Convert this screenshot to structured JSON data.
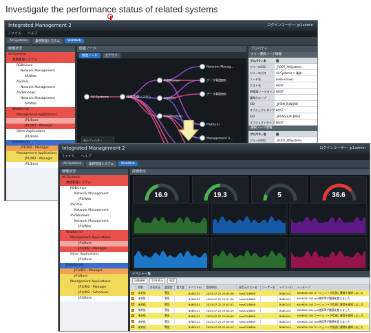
{
  "heading": "Investigate the performance status of related systems",
  "window1": {
    "title": "Integrated Management 2",
    "login_text": "ログインユーザー: jp1admin",
    "menu": [
      "ファイル",
      "ヘルプ"
    ],
    "tabs": [
      "All Systems",
      "業務管理システム",
      "WebWeb"
    ],
    "tree_title": "稼働状況",
    "tree": [
      {
        "label": "All Systems",
        "c": "n-red",
        "i": 0
      },
      {
        "label": "業務管理システム",
        "c": "n-red",
        "i": 1
      },
      {
        "label": "RDB/Linux",
        "c": "n-white",
        "i": 2
      },
      {
        "label": "Network Management",
        "c": "n-white",
        "i": 3
      },
      {
        "label": "IIS/Web",
        "c": "n-white",
        "i": 4
      },
      {
        "label": "AS/Unix",
        "c": "n-white",
        "i": 2
      },
      {
        "label": "Network Management",
        "c": "n-white",
        "i": 3
      },
      {
        "label": "AS/Windows",
        "c": "n-white",
        "i": 2
      },
      {
        "label": "Network Management",
        "c": "n-white",
        "i": 3
      },
      {
        "label": "AP/Web",
        "c": "n-white",
        "i": 4
      },
      {
        "label": "WebServer",
        "c": "n-red",
        "i": 1
      },
      {
        "label": "Management Applications",
        "c": "n-red",
        "i": 2
      },
      {
        "label": "JP1/Base",
        "c": "n-pink",
        "i": 4
      },
      {
        "label": "JP1/IM2 - Manager",
        "c": "n-red",
        "i": 4
      },
      {
        "label": "Other Applications",
        "c": "n-white",
        "i": 2
      },
      {
        "label": "JP1/Base",
        "c": "n-white",
        "i": 4
      },
      {
        "label": "DataServer",
        "c": "n-blue",
        "i": 1
      },
      {
        "label": "JP1/IM2 - Manager",
        "c": "n-orange",
        "i": 3
      },
      {
        "label": "Management Applications",
        "c": "n-yellow",
        "i": 2
      },
      {
        "label": "JP1/IM2 - Manager",
        "c": "n-yellow",
        "i": 4
      },
      {
        "label": "JP1/Base",
        "c": "n-white",
        "i": 4
      }
    ],
    "graph_title": "関連ノード",
    "graph_tabs": [
      "関連ノード",
      "カテゴリ"
    ],
    "nodes": [
      "All Systems",
      "業務管理システム",
      "RDB/Linux",
      "AS/Unix",
      "AS/Windows",
      "Network Manag...",
      "データ制御BB",
      "データ制御BB",
      "Platform",
      "Management A...",
      "JP1/Base",
      "JP1/IM2 - Mana...",
      "JP1/Base"
    ],
    "filters_title": "表示フィルター",
    "filters": [
      "ノード名を表示",
      "Host",
      "Application",
      "Middleware"
    ],
    "props_title": "プロパティ",
    "props_section1": "ツリー選択ノード情報",
    "props_header": [
      "プロパティ名",
      "値"
    ],
    "props1": [
      [
        "ツリーのSID",
        "_ROOT_AllSystems"
      ],
      [
        "ツリーのパス",
        "All Systems > 業務"
      ],
      [
        "ノード名",
        "(web-server)"
      ],
      [
        "ホスト名",
        "HOST"
      ],
      [
        "IM管理ノードタイプ",
        "HOST"
      ],
      [
        "業務グループ",
        ""
      ],
      [
        "SID",
        "_JP1IM_RUN/JOB"
      ],
      [
        "オブジェクトタイプ",
        "HOST"
      ],
      [
        "SID",
        "_JP1AJS3_M_BASE"
      ],
      [
        "オブジェクトタイプ",
        "HOST"
      ]
    ],
    "props_section2": "選択ノード情報",
    "props2": [
      [
        "ツリーのSID",
        "_ROOT_AllSystems"
      ],
      [
        "ツリーのパス",
        "All Systems > 業務"
      ]
    ]
  },
  "window2": {
    "title": "Integrated Management 2",
    "login_text": "ログインユーザー: jp1admin",
    "menu": [
      "ファイル",
      "ヘルプ"
    ],
    "tabs": [
      "All Systems",
      "業務管理システム",
      "WebWeb"
    ],
    "tree_title": "稼働状況",
    "tree": [
      {
        "label": "All Systems",
        "c": "n-red",
        "i": 0
      },
      {
        "label": "業務管理システム",
        "c": "n-red",
        "i": 1
      },
      {
        "label": "RDB/Linux",
        "c": "n-white",
        "i": 2
      },
      {
        "label": "Network Management",
        "c": "n-white",
        "i": 3
      },
      {
        "label": "JP1/Web",
        "c": "n-white",
        "i": 4
      },
      {
        "label": "AS/Unix",
        "c": "n-white",
        "i": 2
      },
      {
        "label": "Network Management",
        "c": "n-white",
        "i": 3
      },
      {
        "label": "AS/Windows",
        "c": "n-white",
        "i": 2
      },
      {
        "label": "Network Management",
        "c": "n-white",
        "i": 3
      },
      {
        "label": "JP1/Web",
        "c": "n-white",
        "i": 4
      },
      {
        "label": "WebServer",
        "c": "n-red",
        "i": 1
      },
      {
        "label": "Management Applications",
        "c": "n-red",
        "i": 2
      },
      {
        "label": "JP1/Base",
        "c": "n-pink",
        "i": 4
      },
      {
        "label": "JP1/IM2 - Manager",
        "c": "n-red",
        "i": 4
      },
      {
        "label": "Other Applications",
        "c": "n-white",
        "i": 2
      },
      {
        "label": "JP1/Base",
        "c": "n-white",
        "i": 4
      },
      {
        "label": "DataServer",
        "c": "n-blue",
        "i": 1
      },
      {
        "label": "JP1/IM2 - Manager",
        "c": "n-orange",
        "i": 3
      },
      {
        "label": "JP1/Base",
        "c": "n-yellow",
        "i": 3
      },
      {
        "label": "Management Applications",
        "c": "n-yellow",
        "i": 2
      },
      {
        "label": "JP1/IM2 - Manager",
        "c": "n-yellow",
        "i": 4
      },
      {
        "label": "JP1/IM2 - Scheduler",
        "c": "n-yellow",
        "i": 4
      },
      {
        "label": "JP1/Base",
        "c": "n-white",
        "i": 4
      }
    ],
    "dash_title": "詳細表示",
    "gauges": [
      {
        "value": "16.9",
        "pct": 0.42,
        "color": "#4caf50"
      },
      {
        "value": "19.3",
        "pct": 0.48,
        "color": "#4caf50"
      },
      {
        "value": "5",
        "pct": 0.12,
        "color": "#4caf50"
      },
      {
        "value": "36.6",
        "pct": 0.78,
        "color": "#e53935"
      }
    ],
    "events_title": "イベント一覧",
    "events_toolbar": [
      "自動更新",
      "10件表示",
      "検索"
    ],
    "events_header": [
      "",
      "状態",
      "対処状況",
      "重要度",
      "重大度",
      "イベントID",
      "登録時刻",
      "発生元ホスト名",
      "ユーザー名",
      "イベントID",
      "メッセージ"
    ],
    "events": [
      [
        "",
        "未対処",
        "",
        "警告",
        "",
        "B480101",
        "2023-07-22 23:05:06",
        "host01/8889",
        "",
        "B480101",
        "KAVB0011W エージェントが応答に異常を検知しました"
      ],
      [
        "",
        "未対処",
        "",
        "警告",
        "",
        "B480101",
        "2023-07-22 23:07:00",
        "host01/8889",
        "",
        "B480101",
        "KAVB0011W cpu使用率が閾値を超えました"
      ],
      [
        "",
        "未対処",
        "",
        "警告",
        "",
        "B480101",
        "2023-07-22 23:07:41",
        "host01/8889",
        "",
        "B480101",
        "KAVB0011W エージェントが応答に異常を検知しました"
      ],
      [
        "",
        "未対処",
        "",
        "警告",
        "",
        "B480101",
        "2023-07-22 23:08:19",
        "host01/8889",
        "",
        "B480101",
        "KAVB0011W cpu使用率が閾値を超えました"
      ],
      [
        "",
        "未対処",
        "",
        "警告",
        "",
        "B480101",
        "2023-07-22 23:08:40",
        "host01/8889",
        "",
        "B480101",
        "KAVB0011W エージェントが応答に異常を検知しました"
      ],
      [
        "",
        "未対処",
        "",
        "警告",
        "",
        "B480101",
        "2023-07-22 23:08:58",
        "host01/8889",
        "",
        "B480101",
        "KAVB0011W cpu使用率が閾値を超えました"
      ],
      [
        "",
        "未対処",
        "",
        "警告",
        "",
        "B480101",
        "2023-07-22 23:09:12",
        "host01/8889",
        "",
        "B480101",
        "KAVB0011W エージェントが応答に異常を検知しました"
      ],
      [
        "",
        "未対処",
        "",
        "警告",
        "",
        "B480101",
        "2023-07-22 23:09:33",
        "host01/8889",
        "",
        "B480101",
        "KAVB0011W cpu使用率が閾値を超えました"
      ],
      [
        "",
        "未対処",
        "",
        "警告",
        "",
        "B480101",
        "2023-07-22 23:09:50",
        "host01/8889",
        "",
        "B480101",
        "KAVB0011W エージェントが応答に異常を検知しました"
      ],
      [
        "",
        "未対処",
        "",
        "警告",
        "",
        "B480101",
        "2023-07-22 23:10:05",
        "host01/8889",
        "",
        "B480101",
        "KAVB0011W cpu使用率が閾値を超えました"
      ]
    ]
  }
}
